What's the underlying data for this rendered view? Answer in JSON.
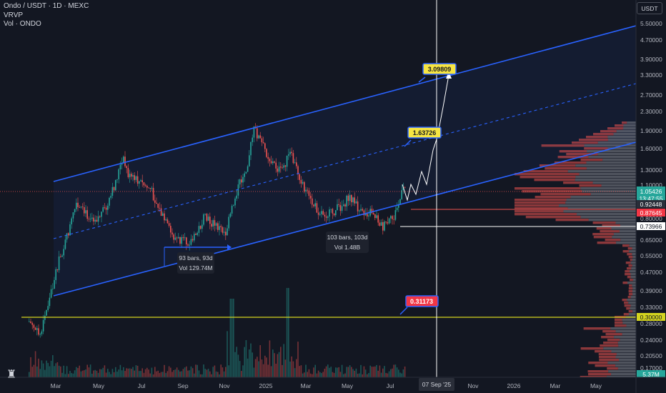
{
  "header": {
    "title": "Ondo / USDT · 1D · MEXC",
    "indicator1": "VRVP",
    "indicator2": "Vol · ONDO"
  },
  "currency_button": "USDT",
  "cursor_date": "07 Sep '25",
  "colors": {
    "background": "#131722",
    "channel": "#2962ff",
    "up": "#26a69a",
    "down": "#ef5350",
    "support": "#d4d41f",
    "target_label": "#f7e542",
    "stop_label": "#f23645"
  },
  "chart_data": {
    "type": "candlestick",
    "symbol": "ONDO/USDT",
    "timeframe": "1D",
    "exchange": "MEXC",
    "y_scale": "log",
    "y_ticks": [
      "5.50000",
      "4.70000",
      "3.90000",
      "3.30000",
      "2.70000",
      "2.30000",
      "1.90000",
      "1.60000",
      "1.30000",
      "1.10000",
      "0.90000",
      "0.80000",
      "0.65000",
      "0.55000",
      "0.47000",
      "0.39000",
      "0.33000",
      "0.28000",
      "0.24000",
      "0.20500",
      "0.17000"
    ],
    "x_ticks": [
      "Mar",
      "May",
      "Jul",
      "Sep",
      "Nov",
      "2025",
      "Mar",
      "May",
      "Jul",
      "Sep",
      "Nov",
      "2026",
      "Mar",
      "May"
    ],
    "price_labels": [
      {
        "text": "1.05426",
        "sub": "13:47:55",
        "color": "#26a69a"
      },
      {
        "text": "0.92448",
        "color": "#2a2e39"
      },
      {
        "text": "0.87645",
        "color": "#f23645"
      },
      {
        "text": "0.73966",
        "color": "#ffffff"
      },
      {
        "text": "0.30000",
        "color": "#d4d41f"
      },
      {
        "text": "5.37M",
        "color": "#26a69a"
      }
    ],
    "targets": [
      {
        "text": "3.09809",
        "kind": "target"
      },
      {
        "text": "1.63726",
        "kind": "target"
      },
      {
        "text": "0.31173",
        "kind": "stop"
      }
    ],
    "measures": [
      {
        "line1": "93 bars, 93d",
        "line2": "Vol 129.74M"
      },
      {
        "line1": "103 bars, 103d",
        "line2": "Vol 1.48B"
      }
    ],
    "support_level": 0.3,
    "current_price": 1.05426
  }
}
